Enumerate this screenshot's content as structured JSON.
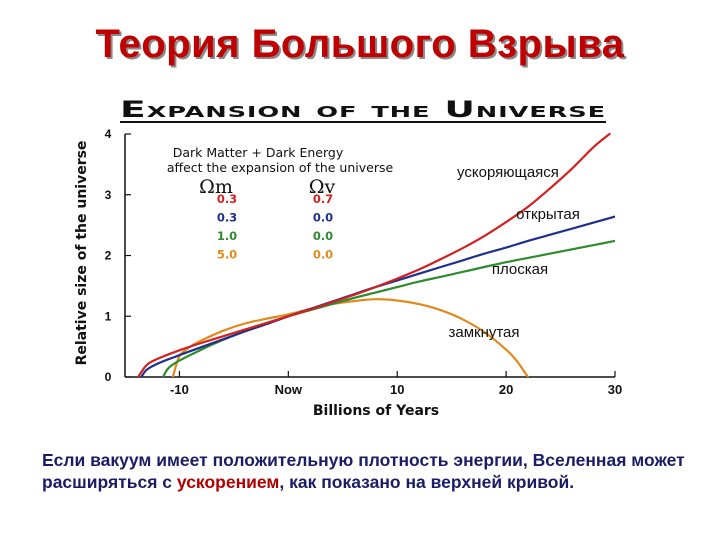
{
  "slide": {
    "title": "Теория Большого Взрыва",
    "caption_before": "Если вакуум имеет положительную плотность энергии, Вселенная может расширяться с ",
    "caption_highlight": "ускорением",
    "caption_after": ", как показано на верхней кривой."
  },
  "colors": {
    "title": "#c00000",
    "accelerating": "#d42020",
    "open": "#1f2f8c",
    "flat": "#2e8b2e",
    "closed": "#e08a1e",
    "caption": "#1c1c66",
    "caption_highlight": "#b00000"
  },
  "chart_data": {
    "type": "line",
    "title": "Expansion of the Universe",
    "xlabel": "Billions of Years",
    "ylabel": "Relative size of the universe",
    "xlim": [
      -15,
      30
    ],
    "ylim": [
      0,
      4
    ],
    "xticks": [
      {
        "value": -10,
        "label": "-10"
      },
      {
        "value": 0,
        "label": "Now"
      },
      {
        "value": 10,
        "label": "10"
      },
      {
        "value": 20,
        "label": "20"
      },
      {
        "value": 30,
        "label": "30"
      }
    ],
    "yticks": [
      0,
      1,
      2,
      3,
      4
    ],
    "legend": {
      "heading_line1": "Dark Matter + Dark Energy",
      "heading_line2": "affect the expansion of the universe",
      "col1": "Ωm",
      "col2": "Ωv",
      "rows": [
        {
          "m": "0.3",
          "v": "0.7",
          "color": "#d42020"
        },
        {
          "m": "0.3",
          "v": "0.0",
          "color": "#1f2f8c"
        },
        {
          "m": "1.0",
          "v": "0.0",
          "color": "#2e8b2e"
        },
        {
          "m": "5.0",
          "v": "0.0",
          "color": "#e08a1e"
        }
      ]
    },
    "series": [
      {
        "key": "accelerating",
        "color": "#d42020",
        "x": [
          -13.8,
          -13,
          -12,
          -10,
          -8,
          -6,
          -4,
          -2,
          0,
          2,
          4,
          6,
          8,
          10,
          12,
          14,
          16,
          18,
          20,
          22,
          24,
          26,
          28,
          29.5
        ],
        "y": [
          0,
          0.2,
          0.3,
          0.44,
          0.56,
          0.67,
          0.78,
          0.89,
          1.0,
          1.11,
          1.23,
          1.35,
          1.48,
          1.62,
          1.77,
          1.94,
          2.12,
          2.32,
          2.55,
          2.8,
          3.1,
          3.42,
          3.78,
          4.0
        ]
      },
      {
        "key": "open",
        "color": "#1f2f8c",
        "x": [
          -13.5,
          -13,
          -12,
          -10,
          -8,
          -6,
          -4,
          -2,
          0,
          2,
          4,
          6,
          8,
          10,
          12,
          14,
          16,
          18,
          20,
          22,
          24,
          26,
          28,
          30
        ],
        "y": [
          0,
          0.12,
          0.22,
          0.36,
          0.49,
          0.62,
          0.75,
          0.87,
          1.0,
          1.12,
          1.24,
          1.36,
          1.48,
          1.59,
          1.7,
          1.81,
          1.92,
          2.03,
          2.13,
          2.24,
          2.34,
          2.44,
          2.54,
          2.64
        ]
      },
      {
        "key": "flat",
        "color": "#2e8b2e",
        "x": [
          -11.5,
          -11,
          -10,
          -8,
          -6,
          -4,
          -2,
          0,
          2,
          4,
          6,
          8,
          10,
          12,
          14,
          16,
          18,
          20,
          22,
          24,
          26,
          28,
          30
        ],
        "y": [
          0,
          0.15,
          0.27,
          0.45,
          0.61,
          0.75,
          0.88,
          1.0,
          1.1,
          1.2,
          1.3,
          1.39,
          1.48,
          1.57,
          1.65,
          1.73,
          1.81,
          1.89,
          1.96,
          2.03,
          2.1,
          2.17,
          2.24
        ]
      },
      {
        "key": "closed",
        "color": "#e08a1e",
        "x": [
          -10.6,
          -10,
          -9,
          -8,
          -6,
          -4,
          -2,
          0,
          2,
          4,
          6,
          8,
          10,
          12,
          14,
          16,
          18,
          20,
          21,
          22
        ],
        "y": [
          0,
          0.34,
          0.5,
          0.6,
          0.76,
          0.88,
          0.96,
          1.03,
          1.12,
          1.2,
          1.25,
          1.28,
          1.26,
          1.2,
          1.1,
          0.95,
          0.74,
          0.45,
          0.26,
          0
        ]
      }
    ],
    "annotations": [
      {
        "text": "ускоряющаяся",
        "series": "accelerating"
      },
      {
        "text": "открытая",
        "series": "open"
      },
      {
        "text": "плоская",
        "series": "flat"
      },
      {
        "text": "замкнутая",
        "series": "closed"
      }
    ],
    "grid": false
  }
}
